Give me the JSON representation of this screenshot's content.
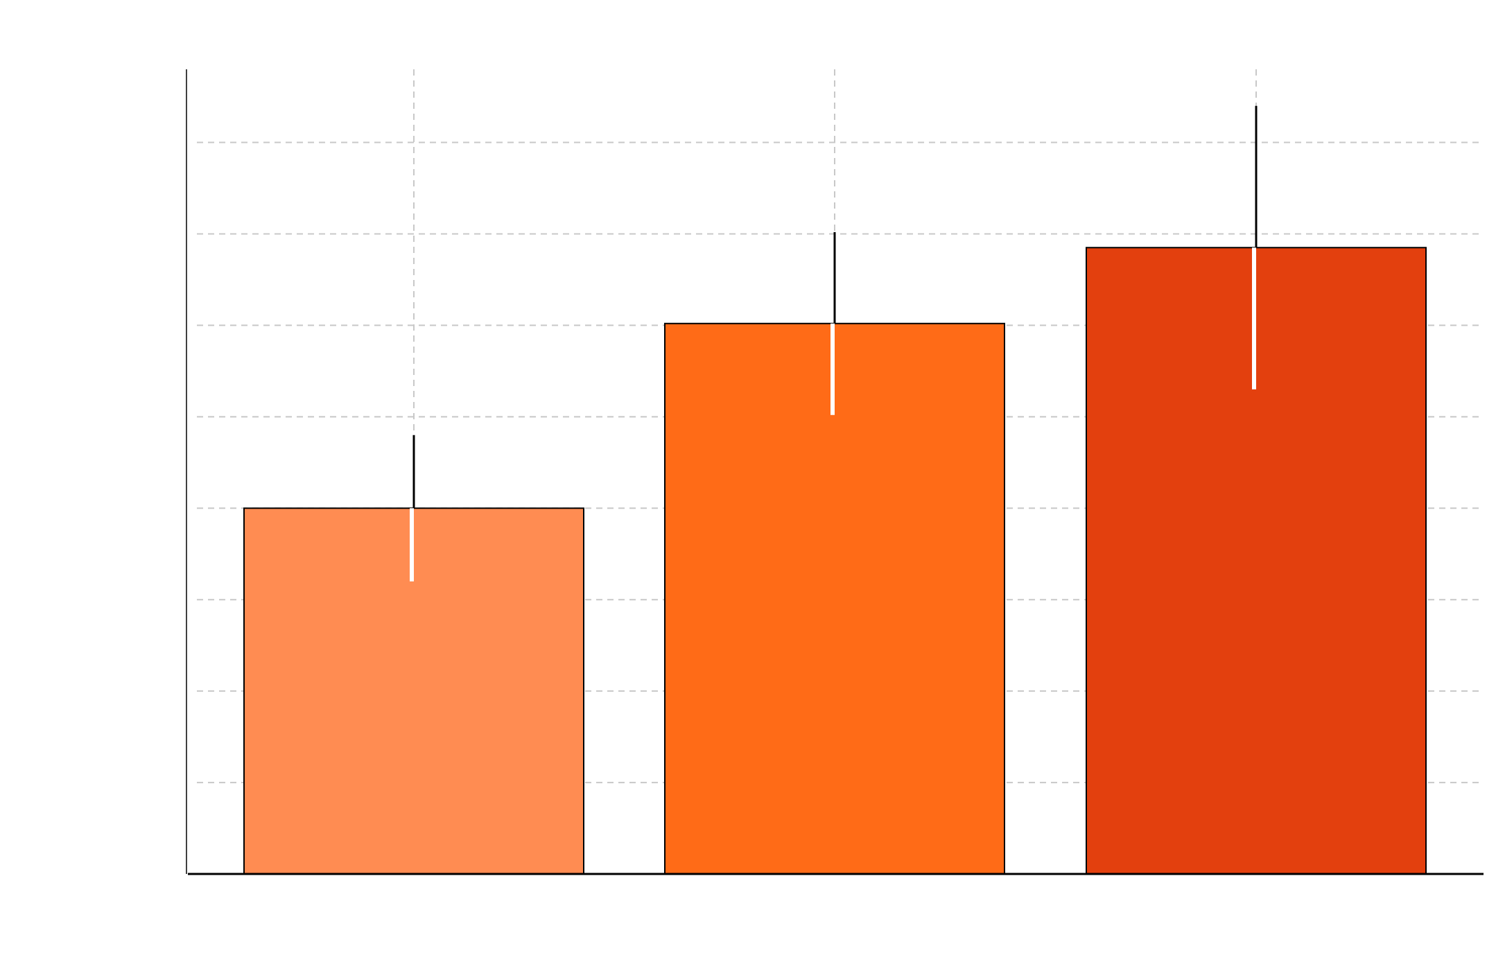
{
  "chart_data": {
    "type": "bar",
    "title": "",
    "xlabel": "",
    "ylabel": "",
    "categories": [
      "",
      "",
      ""
    ],
    "values": [
      4,
      6.02,
      6.85
    ],
    "error": [
      0.8,
      1.0,
      1.55
    ],
    "ylim": [
      0,
      8.8
    ],
    "grid_values": [
      1,
      2,
      3,
      4,
      5,
      6,
      7,
      8
    ],
    "grid": true,
    "colors": [
      "#ff8c52",
      "#ff6b17",
      "#e3400e"
    ],
    "edge_color": "#000000",
    "grid_color": "#c8c8c8"
  }
}
